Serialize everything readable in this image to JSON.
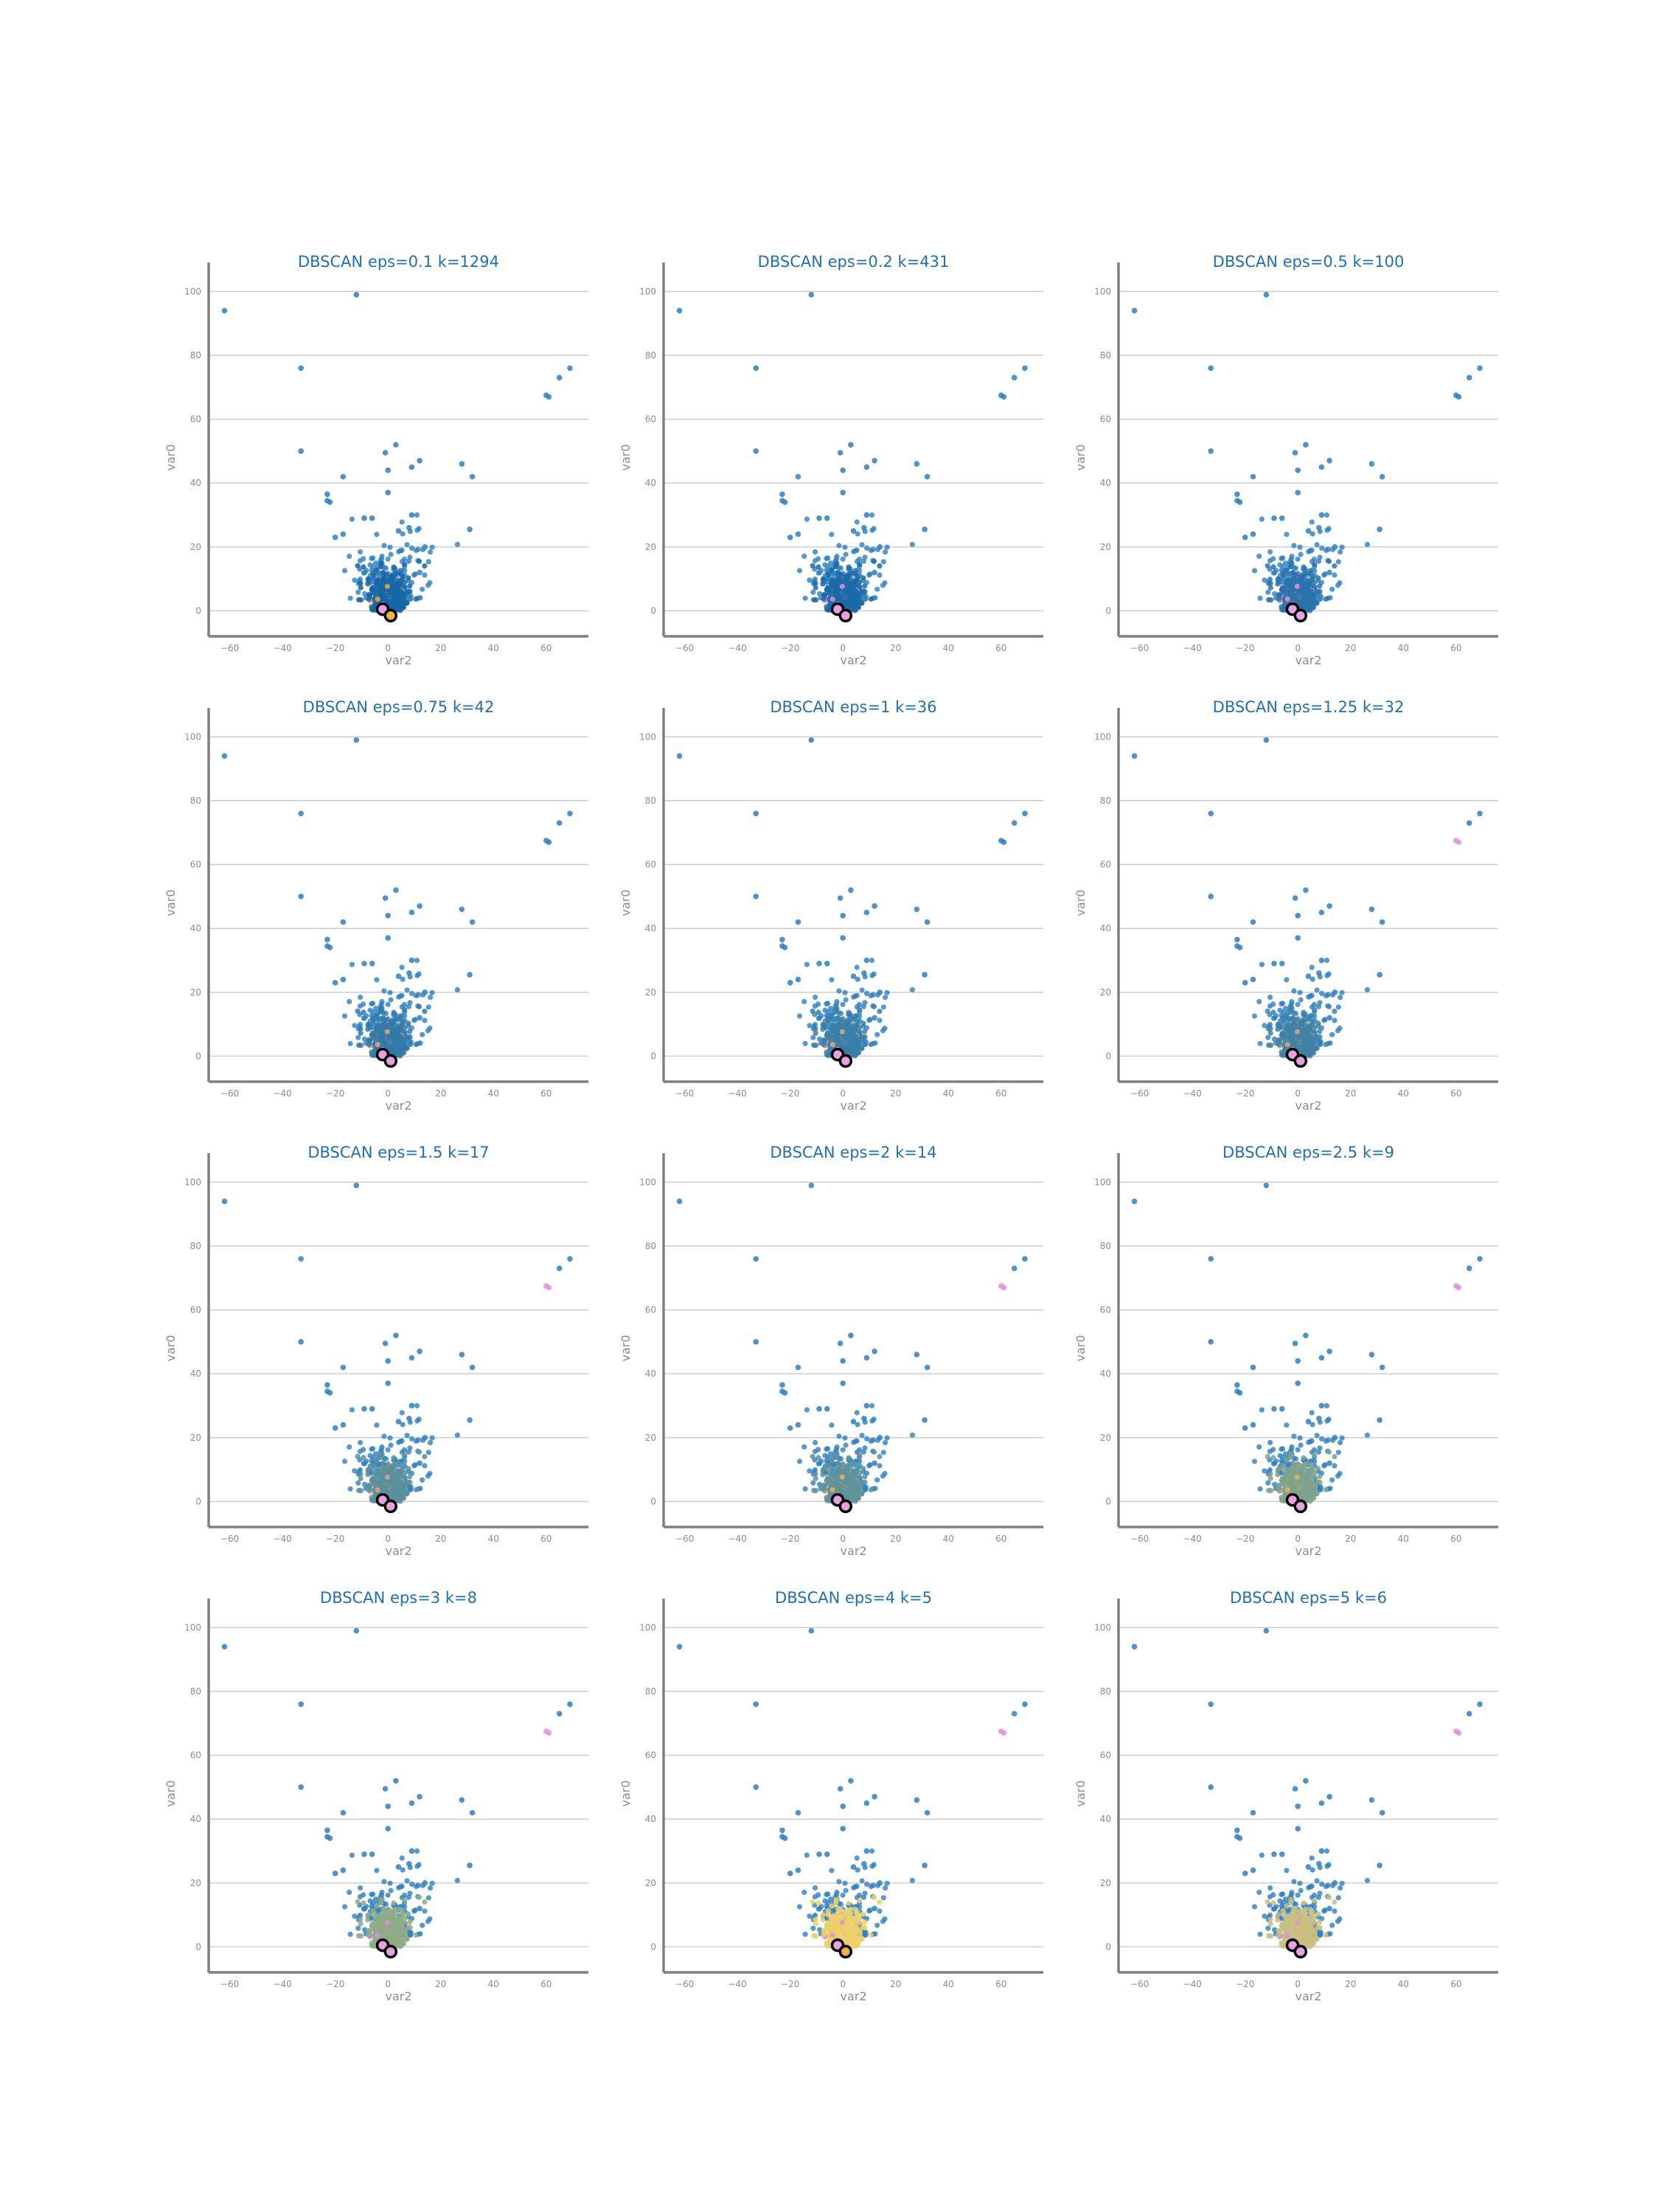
{
  "chart_data": {
    "type": "scatter",
    "layout": "grid-4x3",
    "colors": {
      "title": "#1f6fb2",
      "noise": "#2e7fc0",
      "axis": "#7f7f7f",
      "grid": "#cccccc",
      "tick_text": "#8c8c8c",
      "cluster_pink": "#e38fd8",
      "cluster_orange": "#f0a64a",
      "centroid_fill_pink": "#e8a1e0",
      "centroid_fill_orange": "#f2b33d",
      "centroid_edge": "#000000"
    },
    "shared": {
      "xlabel": "var2",
      "ylabel": "var0",
      "xlim": [
        -68,
        76
      ],
      "ylim": [
        -8,
        104
      ],
      "xticks": [
        -60,
        -40,
        -20,
        0,
        20,
        40,
        60
      ],
      "yticks": [
        0,
        20,
        40,
        60,
        80,
        100
      ],
      "grid": "horizontal"
    },
    "noise_outliers": [
      [
        -62,
        94
      ],
      [
        -12,
        99
      ],
      [
        -33,
        76
      ],
      [
        60,
        67.5
      ],
      [
        61,
        67
      ],
      [
        65,
        73
      ],
      [
        69,
        76
      ],
      [
        -33,
        50
      ],
      [
        -1,
        49.5
      ],
      [
        3,
        52
      ],
      [
        0,
        44
      ],
      [
        9,
        45
      ],
      [
        12,
        47
      ],
      [
        28,
        46
      ],
      [
        32,
        42
      ],
      [
        -17,
        42
      ],
      [
        -23,
        36.5
      ],
      [
        -23,
        34.5
      ],
      [
        -22,
        34
      ],
      [
        0,
        37
      ],
      [
        31,
        25.5
      ],
      [
        -20,
        23
      ],
      [
        -17,
        24
      ],
      [
        -9,
        29
      ],
      [
        -6,
        29
      ],
      [
        4,
        25
      ],
      [
        8,
        26
      ],
      [
        9,
        30
      ],
      [
        14,
        20
      ],
      [
        12,
        12
      ]
    ],
    "panels": [
      {
        "title": "DBSCAN eps=0.1 k=1294",
        "eps": 0.1,
        "k": 1294,
        "core_color": "#1567a8",
        "accent": "#f0a64a",
        "pink_cluster": false,
        "centroids": [
          [
            -2,
            0.5,
            "pink"
          ],
          [
            1,
            -1.5,
            "orange"
          ]
        ]
      },
      {
        "title": "DBSCAN eps=0.2 k=431",
        "eps": 0.2,
        "k": 431,
        "core_color": "#1a6aa8",
        "accent": "#e38fd8",
        "pink_cluster": false,
        "centroids": [
          [
            -2,
            0.5,
            "pink"
          ],
          [
            1,
            -1.5,
            "pink"
          ]
        ]
      },
      {
        "title": "DBSCAN eps=0.5 k=100",
        "eps": 0.5,
        "k": 100,
        "core_color": "#2a73aa",
        "accent": "#e38fd8",
        "pink_cluster": false,
        "centroids": [
          [
            -2,
            0.5,
            "pink"
          ],
          [
            1,
            -1.5,
            "pink"
          ]
        ]
      },
      {
        "title": "DBSCAN eps=0.75 k=42",
        "eps": 0.75,
        "k": 42,
        "core_color": "#3479a8",
        "accent": "#e9a27a",
        "pink_cluster": false,
        "centroids": [
          [
            -2,
            0.5,
            "pink"
          ],
          [
            1,
            -1.5,
            "pink"
          ]
        ]
      },
      {
        "title": "DBSCAN eps=1 k=36",
        "eps": 1,
        "k": 36,
        "core_color": "#3a7fa8",
        "accent": "#e9a27a",
        "pink_cluster": false,
        "centroids": [
          [
            -2,
            0.5,
            "pink"
          ],
          [
            1,
            -1.5,
            "pink"
          ]
        ]
      },
      {
        "title": "DBSCAN eps=1.25 k=32",
        "eps": 1.25,
        "k": 32,
        "core_color": "#3f82a5",
        "accent": "#e9a27a",
        "pink_cluster": true,
        "centroids": [
          [
            -2,
            0.5,
            "pink"
          ],
          [
            1,
            -1.5,
            "pink"
          ]
        ]
      },
      {
        "title": "DBSCAN eps=1.5 k=17",
        "eps": 1.5,
        "k": 17,
        "core_color": "#5a8f9c",
        "accent": "#e9a27a",
        "pink_cluster": true,
        "centroids": [
          [
            -2,
            0.5,
            "pink"
          ],
          [
            1,
            -1.5,
            "pink"
          ]
        ]
      },
      {
        "title": "DBSCAN eps=2 k=14",
        "eps": 2,
        "k": 14,
        "core_color": "#5f929a",
        "accent": "#e9b060",
        "pink_cluster": true,
        "centroids": [
          [
            -2,
            0.5,
            "pink"
          ],
          [
            1,
            -1.5,
            "pink"
          ]
        ]
      },
      {
        "title": "DBSCAN eps=2.5 k=9",
        "eps": 2.5,
        "k": 9,
        "core_color": "#7fa28c",
        "accent": "#e9b060",
        "pink_cluster": true,
        "centroids": [
          [
            -2,
            0.5,
            "pink"
          ],
          [
            1,
            -1.5,
            "pink"
          ]
        ]
      },
      {
        "title": "DBSCAN eps=3 k=8",
        "eps": 3,
        "k": 8,
        "core_color": "#8fab86",
        "accent": "#e38fd8",
        "pink_cluster": true,
        "centroids": [
          [
            -2,
            0.5,
            "pink"
          ],
          [
            1,
            -1.5,
            "pink"
          ]
        ]
      },
      {
        "title": "DBSCAN eps=4 k=5",
        "eps": 4,
        "k": 5,
        "core_color": "#ecd06a",
        "accent": "#e38fd8",
        "pink_cluster": true,
        "centroids": [
          [
            -2,
            0.5,
            "pink"
          ],
          [
            1,
            -1.5,
            "orange"
          ]
        ]
      },
      {
        "title": "DBSCAN eps=5 k=6",
        "eps": 5,
        "k": 6,
        "core_color": "#c8c080",
        "accent": "#e38fd8",
        "pink_cluster": true,
        "centroids": [
          [
            -2,
            0.5,
            "pink"
          ],
          [
            1,
            -1.5,
            "pink"
          ]
        ]
      }
    ]
  }
}
